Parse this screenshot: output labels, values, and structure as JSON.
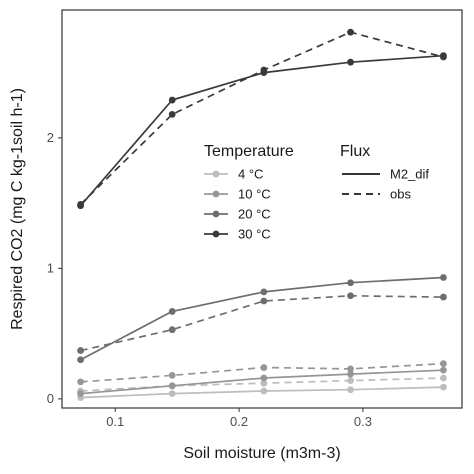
{
  "chart_data": {
    "type": "line",
    "xlabel": "Soil moisture (m3m-3)",
    "ylabel": "Respired CO2 (mg C kg-1soil h-1)",
    "x": [
      0.072,
      0.146,
      0.22,
      0.29,
      0.365
    ],
    "x_ticks": [
      0.1,
      0.2,
      0.3
    ],
    "y_ticks": [
      0,
      1,
      2
    ],
    "xlim": [
      0.057,
      0.38
    ],
    "ylim": [
      -0.07,
      2.98
    ],
    "grid": false,
    "legends": [
      {
        "title": "Temperature",
        "placement": "center",
        "entries": [
          {
            "label": "4 °C",
            "color": "#bdbdbd"
          },
          {
            "label": "10 °C",
            "color": "#969696"
          },
          {
            "label": "20 °C",
            "color": "#6e6e6e"
          },
          {
            "label": "30 °C",
            "color": "#3a3a3a"
          }
        ]
      },
      {
        "title": "Flux",
        "placement": "center-right",
        "entries": [
          {
            "label": "M2_dif",
            "linestyle": "solid"
          },
          {
            "label": "obs",
            "linestyle": "dashed"
          }
        ]
      }
    ],
    "series": [
      {
        "temperature": "4 °C",
        "flux": "M2_dif",
        "color": "#bdbdbd",
        "dashed": false,
        "values": [
          0.01,
          0.04,
          0.06,
          0.07,
          0.09
        ]
      },
      {
        "temperature": "4 °C",
        "flux": "obs",
        "color": "#bdbdbd",
        "dashed": true,
        "values": [
          0.06,
          0.1,
          0.12,
          0.14,
          0.16
        ]
      },
      {
        "temperature": "10 °C",
        "flux": "M2_dif",
        "color": "#969696",
        "dashed": false,
        "values": [
          0.04,
          0.1,
          0.16,
          0.19,
          0.22
        ]
      },
      {
        "temperature": "10 °C",
        "flux": "obs",
        "color": "#969696",
        "dashed": true,
        "values": [
          0.13,
          0.18,
          0.24,
          0.23,
          0.27
        ]
      },
      {
        "temperature": "20 °C",
        "flux": "M2_dif",
        "color": "#6e6e6e",
        "dashed": false,
        "values": [
          0.3,
          0.67,
          0.82,
          0.89,
          0.93
        ]
      },
      {
        "temperature": "20 °C",
        "flux": "obs",
        "color": "#6e6e6e",
        "dashed": true,
        "values": [
          0.37,
          0.53,
          0.75,
          0.79,
          0.78
        ]
      },
      {
        "temperature": "30 °C",
        "flux": "M2_dif",
        "color": "#3a3a3a",
        "dashed": false,
        "values": [
          1.48,
          2.29,
          2.5,
          2.58,
          2.63
        ]
      },
      {
        "temperature": "30 °C",
        "flux": "obs",
        "color": "#3a3a3a",
        "dashed": true,
        "values": [
          1.49,
          2.18,
          2.52,
          2.81,
          2.62
        ]
      }
    ]
  }
}
